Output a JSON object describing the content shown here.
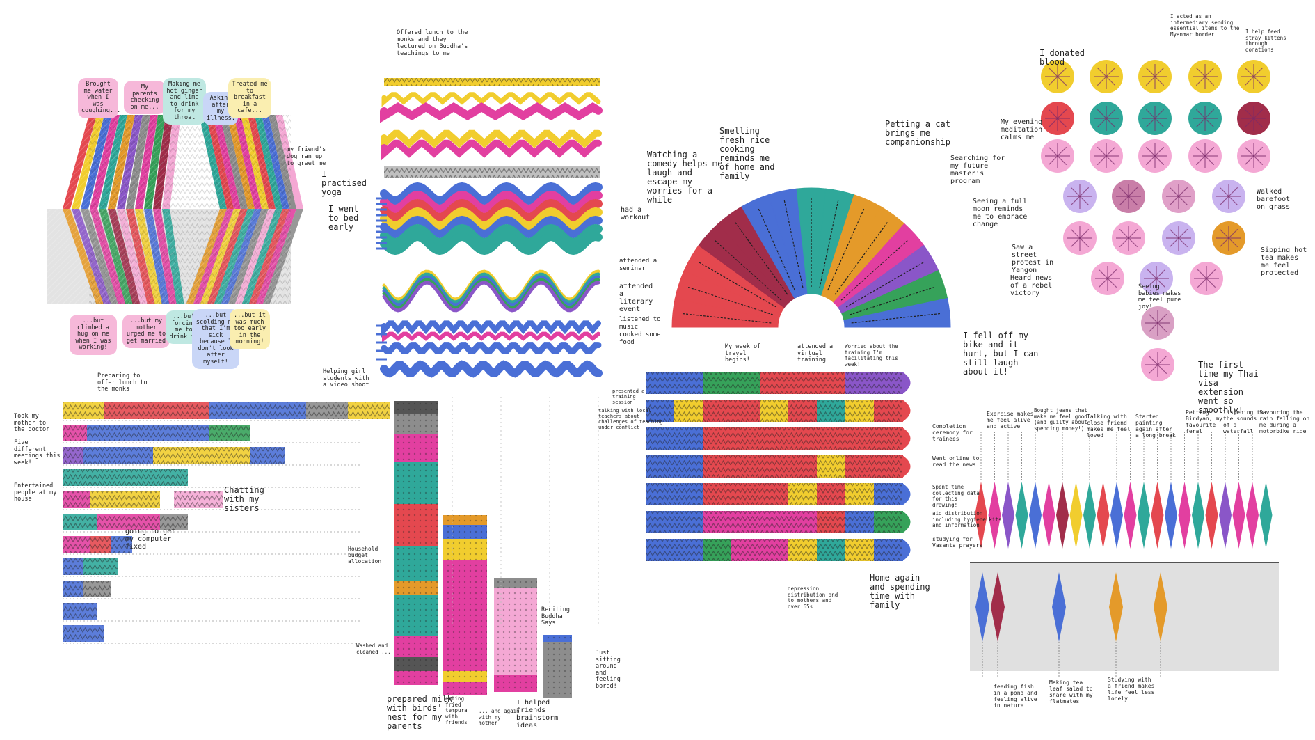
{
  "palette": {
    "red": "#e4484f",
    "pink": "#e23fa0",
    "yellow": "#f1cd2e",
    "teal": "#2fa89a",
    "blue": "#4a6fd6",
    "purple": "#8a56c8",
    "green": "#36a25a",
    "orange": "#e49a2a",
    "maroon": "#a12d4a",
    "grey": "#8d8d8d",
    "lightpink": "#f4a8d4",
    "ink": "#1f1f1f"
  },
  "panel1": {
    "top_notes": [
      "Brought me water when I was coughing...",
      "My parents checking on me...",
      "Making me hot ginger and lime to drink for my throat",
      "Asking after my illness...",
      "Treated me to breakfast in a cafe...",
      "my friend's dog ran up to greet me"
    ],
    "bottom_notes": [
      "...but climbed a hug on me when I was working!",
      "...but my mother urged me to get married",
      "...but forcing me to drink it",
      "...but scolding me that I'm sick because I don't look after myself!",
      "...but it was much too early in the morning!"
    ]
  },
  "panel2": {
    "notes": [
      "Offered lunch to the monks and they lectured on Buddha's teachings to me",
      "I practised yoga",
      "I went to bed early",
      "had a workout",
      "attended a seminar",
      "attended a literary event",
      "listened to music",
      "cooked some food"
    ]
  },
  "panel3": {
    "notes": [
      "Watching a comedy helps me laugh and escape my worries for a while",
      "Smelling fresh rice cooking reminds me of home and family",
      "Petting a cat brings me companionship",
      "Searching for my future master's program",
      "Seeing a full moon reminds me to embrace change",
      "Saw a street protest in Yangon",
      "Heard news of a rebel victory",
      "I fell off my bike and it hurt, but I can still laugh about it!"
    ]
  },
  "panel4": {
    "notes": [
      "I donated blood",
      "I acted as an intermediary sending essential items to the Myanmar border",
      "I help feed stray kittens through donations",
      "My evening meditation calms me",
      "Walked barefoot on grass",
      "Sipping hot tea makes me feel protected",
      "Seeing babies makes me feel pure joy!",
      "The first time my Thai visa extension went so smoothly!"
    ]
  },
  "panel5": {
    "notes": [
      "Preparing to offer lunch to the monks",
      "Helping girl students with a video shoot",
      "Took my mother to the doctor",
      "Five different meetings this week!",
      "Entertained people at my house",
      "Chatting with my sisters",
      "going to get my computer fixed"
    ]
  },
  "panel6": {
    "notes": [
      "Household budget allocation",
      "Washed and cleaned ...",
      "prepared milk with birds' nest for my parents",
      "eating fried tempura with friends",
      "... and again with my mother",
      "Reciting Buddha Says",
      "Just sitting around and feeling bored!",
      "I helped friends brainstorm ideas"
    ]
  },
  "panel7": {
    "notes": [
      "My week of travel begins!",
      "attended a virtual training",
      "Worried about the training I'm facilitating this week!",
      "presented a training session",
      "talking with local teachers about challenges of teaching under conflict",
      "Completion ceremony for trainees",
      "Went online to read the news",
      "Spent time collecting data for this drawing!",
      "aid distribution including hygiene kits and information",
      "studying for Vasanta prayers",
      "depression distribution and to mothers and over 65s",
      "Home again and spending time with family"
    ]
  },
  "panel8": {
    "notes": [
      "Exercise makes me feel alive and active",
      "Bought jeans that make me feel good (and guilty about spending money!)",
      "Talking with close friend makes me feel loved",
      "Started painting again after a long break",
      "Petting Birdyan, my favourite feral!",
      "listening to the sounds of a waterfall",
      "Savouring the rain falling on me during a motorbike ride",
      "feeding fish in a pond and feeling alive in nature",
      "Making tea leaf salad to share with my flatmates",
      "Studying with a friend makes life feel less lonely"
    ]
  }
}
